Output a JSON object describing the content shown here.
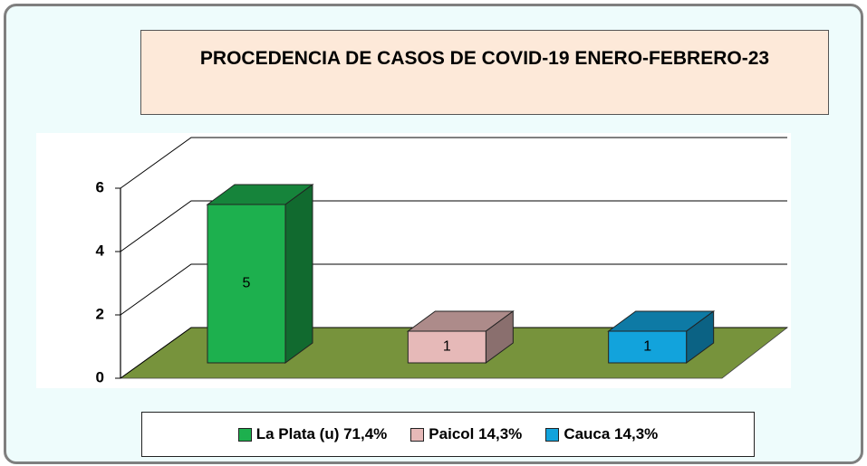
{
  "chart_data": {
    "type": "bar3d",
    "title": "PROCEDENCIA DE CASOS DE COVID-19 ENERO-FEBRERO-23",
    "categories": [
      "La Plata (u) 71,4%",
      "Paicol 14,3%",
      "Cauca 14,3%"
    ],
    "values": [
      5,
      1,
      1
    ],
    "colors": [
      "#1db04e",
      "#e6b9b8",
      "#12a3dc"
    ],
    "ylim": [
      0,
      6
    ],
    "yticks": [
      0,
      2,
      4,
      6
    ],
    "grid": true,
    "legend": "bottom"
  }
}
